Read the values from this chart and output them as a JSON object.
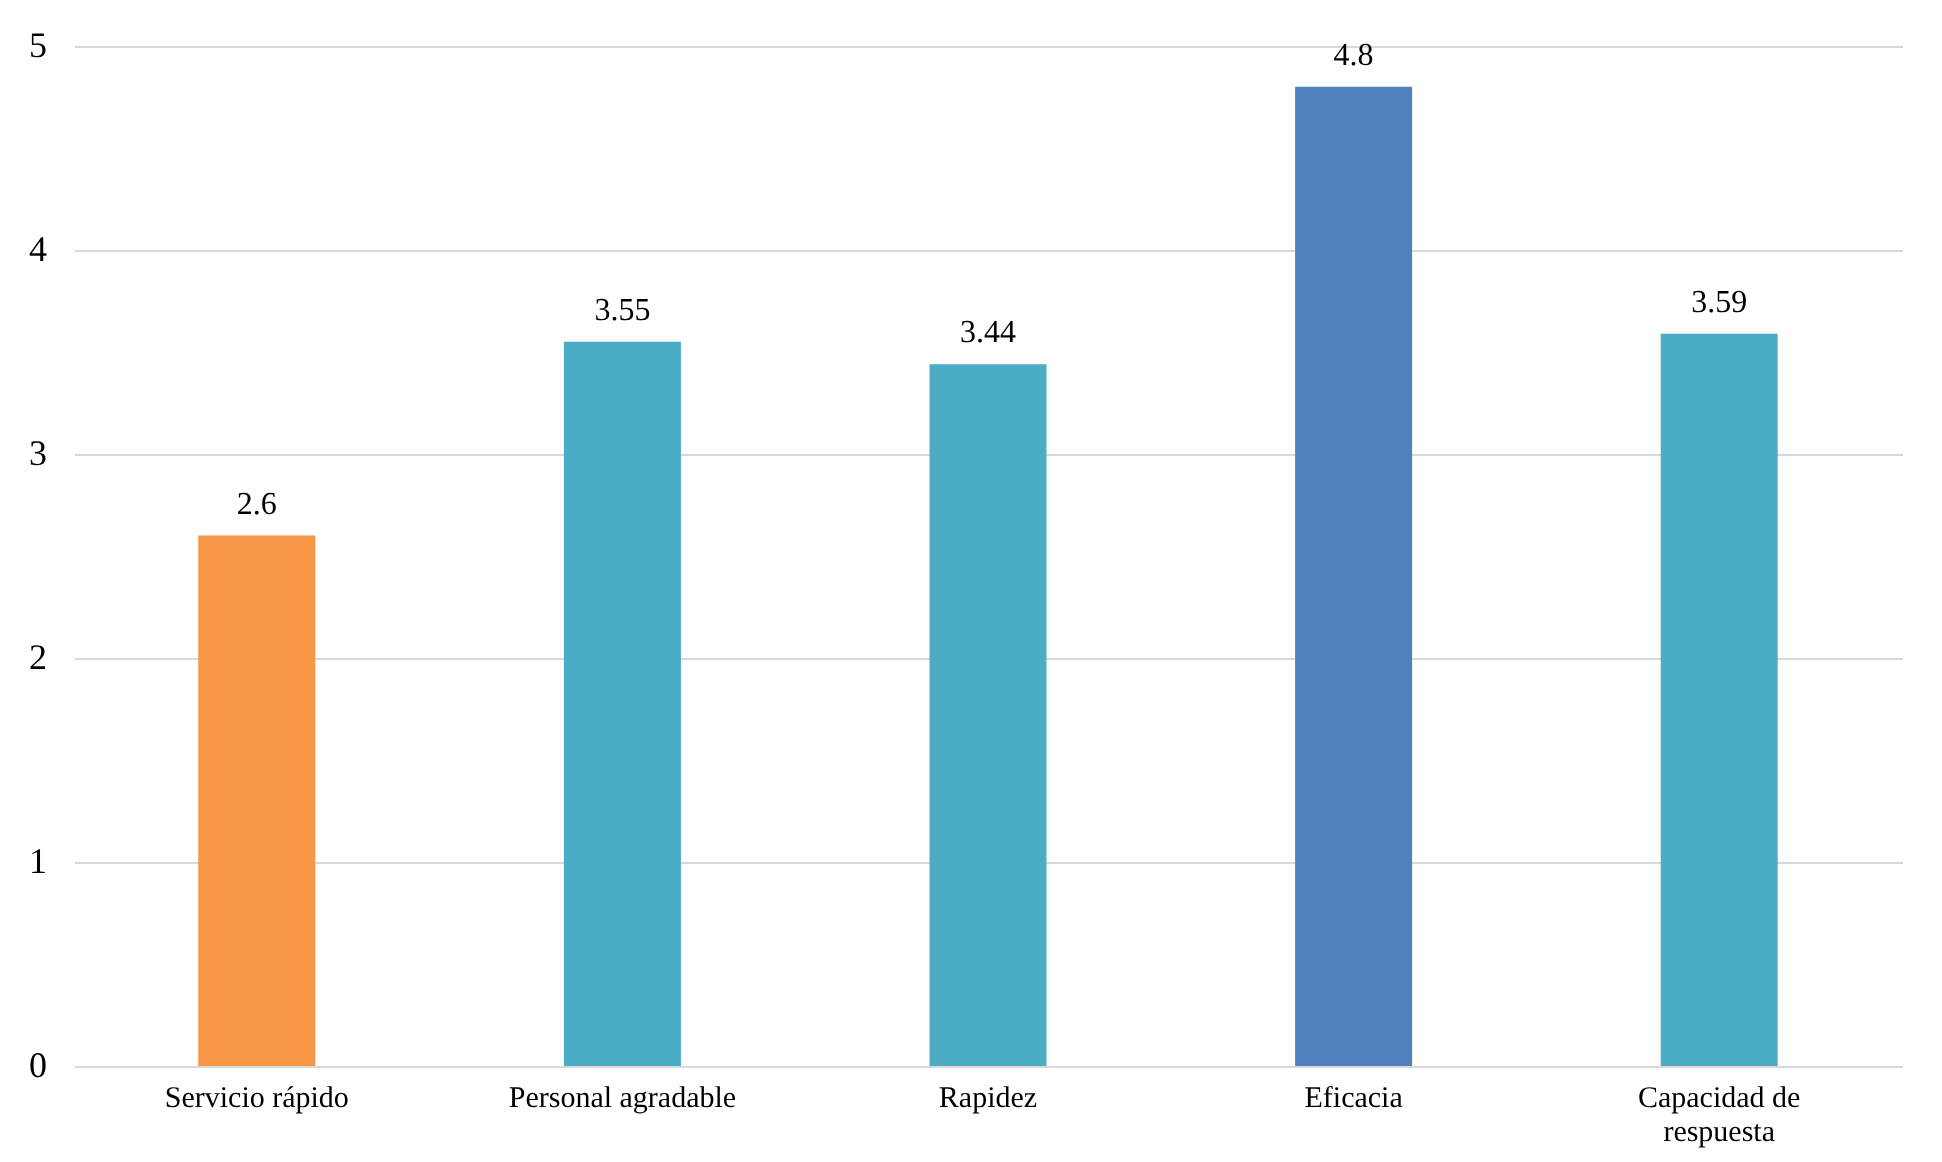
{
  "chart_data": {
    "type": "bar",
    "categories": [
      "Servicio rápido",
      "Personal agradable",
      "Rapidez",
      "Eficacia",
      "Capacidad de respuesta"
    ],
    "values": [
      2.6,
      3.55,
      3.44,
      4.8,
      3.59
    ],
    "colors": [
      "#f79646",
      "#4bacc6",
      "#4bacc6",
      "#4f81bd",
      "#4bacc6"
    ],
    "ylim": [
      0,
      5
    ],
    "yticks": [
      0,
      1,
      2,
      3,
      4,
      5
    ],
    "grid": "y",
    "data_labels": true
  }
}
